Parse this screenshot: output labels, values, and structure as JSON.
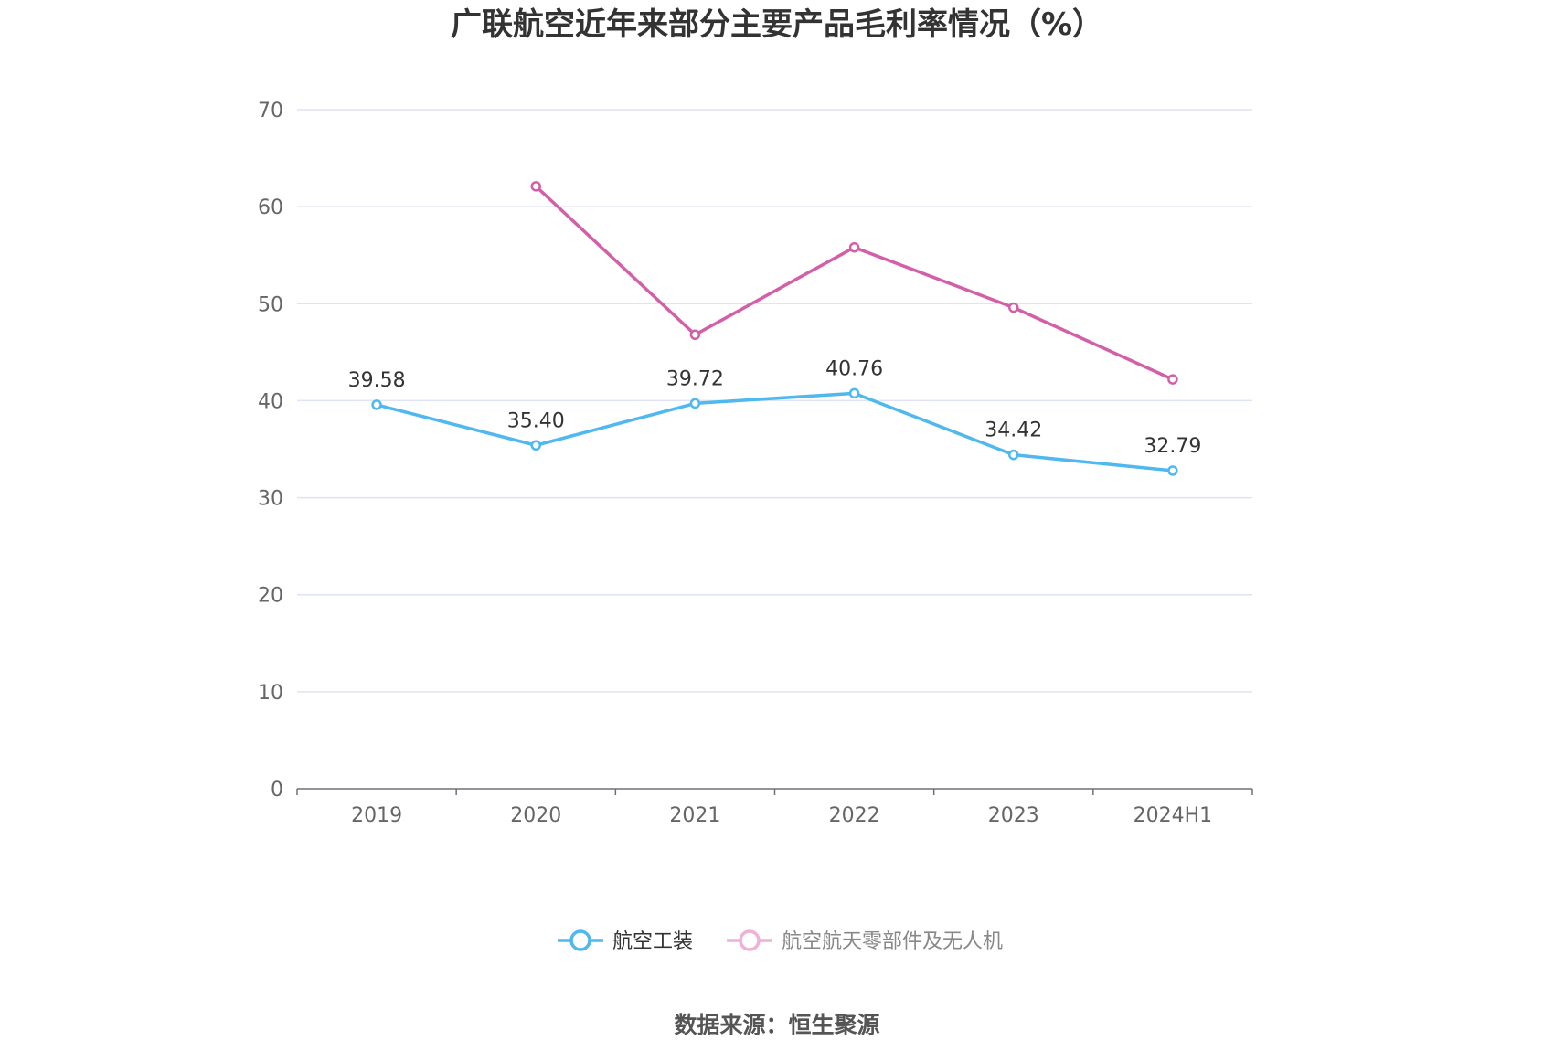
{
  "chart_data": {
    "type": "line",
    "title": "广联航空近年来部分主要产品毛利率情况（%）",
    "categories": [
      "2019",
      "2020",
      "2021",
      "2022",
      "2023",
      "2024H1"
    ],
    "ylim": [
      0,
      70
    ],
    "yticks": [
      "0",
      "10",
      "20",
      "30",
      "40",
      "50",
      "60",
      "70"
    ],
    "grid": true,
    "legend_position": "bottom-center",
    "series": [
      {
        "name": "航空工装",
        "color": "#4fb8ef",
        "values": [
          39.58,
          35.4,
          39.72,
          40.76,
          34.42,
          32.79
        ],
        "labels": [
          "39.58",
          "35.40",
          "39.72",
          "40.76",
          "34.42",
          "32.79"
        ],
        "show_labels": true,
        "active": true
      },
      {
        "name": "航空航天零部件及无人机",
        "color": "#d35fa8",
        "legend_color": "#efb1d6",
        "values": [
          null,
          62.1,
          46.8,
          55.8,
          49.6,
          42.2
        ],
        "show_labels": false,
        "active": false
      }
    ],
    "source": "数据来源：恒生聚源"
  }
}
